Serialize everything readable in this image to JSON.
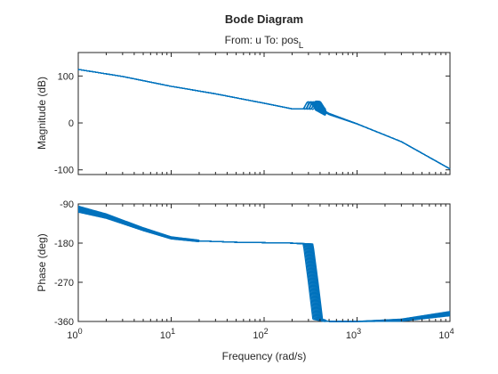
{
  "chart_data": {
    "type": "line",
    "title": "Bode Diagram",
    "subtitle": {
      "from_prefix": "From: u  To: pos",
      "from_subscript": "L"
    },
    "xlabel": "Frequency (rad/s)",
    "xscale": "log",
    "xlim": [
      1,
      10000
    ],
    "x_ticks": [
      {
        "base": "10",
        "exp": "0"
      },
      {
        "base": "10",
        "exp": "1"
      },
      {
        "base": "10",
        "exp": "2"
      },
      {
        "base": "10",
        "exp": "3"
      },
      {
        "base": "10",
        "exp": "4"
      }
    ],
    "grid": false,
    "color": "#0072BD",
    "resonance_band_rad_s": [
      300,
      380
    ],
    "family_count": 12,
    "subplots": [
      {
        "id": "magnitude",
        "ylabel": "Magnitude (dB)",
        "ylim": [
          -110,
          150
        ],
        "yticks": [
          100,
          0,
          -100
        ],
        "ytick_labels": [
          "100",
          "0",
          "-100"
        ],
        "series_nominal": {
          "x": [
            1,
            3,
            10,
            30,
            100,
            200,
            300,
            330,
            360,
            400,
            500,
            1000,
            3000,
            10000
          ],
          "y": [
            114,
            99,
            78,
            62,
            42,
            30,
            30,
            45,
            44,
            30,
            19,
            -2,
            -40,
            -98
          ]
        }
      },
      {
        "id": "phase",
        "ylabel": "Phase (deg)",
        "ylim": [
          -360,
          -90
        ],
        "yticks": [
          -90,
          -180,
          -270,
          -360
        ],
        "ytick_labels": [
          "-90",
          "-180",
          "-270",
          "-360"
        ],
        "series_nominal": {
          "x": [
            1,
            2,
            5,
            10,
            20,
            50,
            100,
            200,
            300,
            340,
            380,
            500,
            1000,
            3000,
            10000
          ],
          "y": [
            -102,
            -118,
            -148,
            -168,
            -175,
            -178,
            -179,
            -180,
            -182,
            -270,
            -355,
            -360,
            -360,
            -357,
            -342
          ]
        }
      }
    ]
  }
}
